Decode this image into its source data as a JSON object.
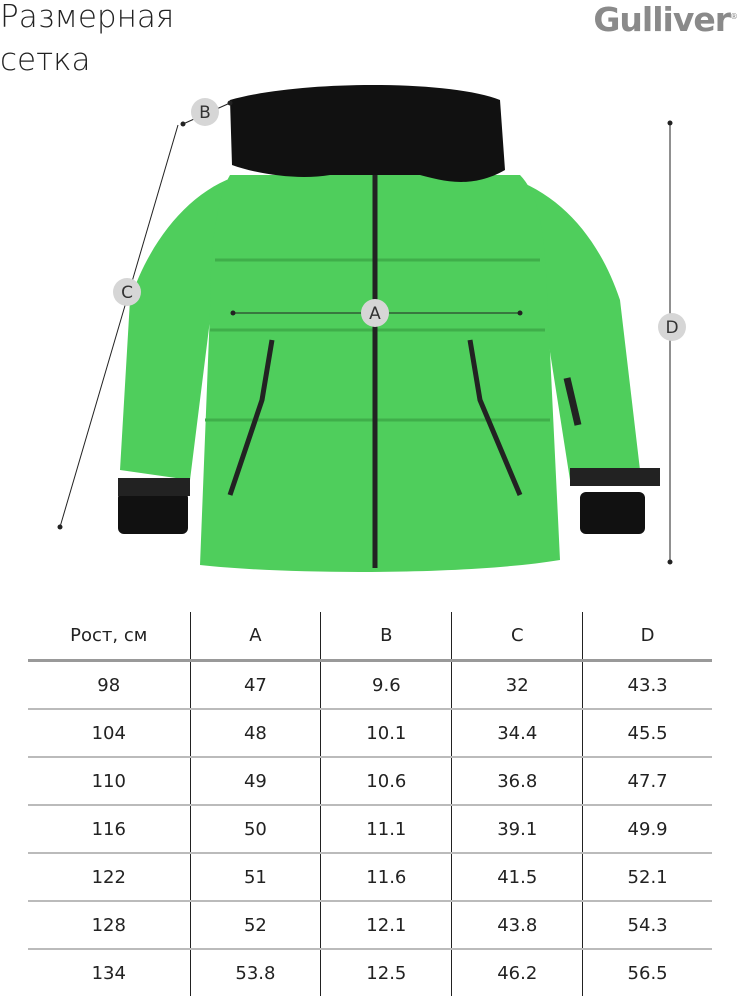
{
  "title": "Размерная сетка",
  "brand": "Gulliver",
  "measure_labels": {
    "a": "A",
    "b": "B",
    "c": "C",
    "d": "D"
  },
  "colors": {
    "jacket": "#4fce5c",
    "hood": "#111111",
    "label_circle": "#d6d6d6"
  },
  "table": {
    "headers": [
      "Рост, см",
      "A",
      "B",
      "C",
      "D"
    ],
    "rows": [
      [
        "98",
        "47",
        "9.6",
        "32",
        "43.3"
      ],
      [
        "104",
        "48",
        "10.1",
        "34.4",
        "45.5"
      ],
      [
        "110",
        "49",
        "10.6",
        "36.8",
        "47.7"
      ],
      [
        "116",
        "50",
        "11.1",
        "39.1",
        "49.9"
      ],
      [
        "122",
        "51",
        "11.6",
        "41.5",
        "52.1"
      ],
      [
        "128",
        "52",
        "12.1",
        "43.8",
        "54.3"
      ],
      [
        "134",
        "53.8",
        "12.5",
        "46.2",
        "56.5"
      ]
    ]
  }
}
